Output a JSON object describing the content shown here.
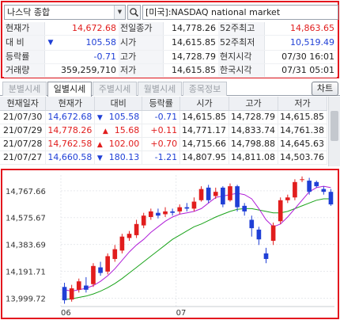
{
  "summary": {
    "stock_name": "나스닥 종합",
    "market_label": "[미국]:NASDAQ national market",
    "rows": [
      {
        "l1": "현재가",
        "v1": "14,672.68",
        "c1": "red",
        "l2": "전일종가",
        "v2": "14,778.26",
        "l3": "52주최고",
        "v3": "14,863.65",
        "c3": "red"
      },
      {
        "l1": "대 비",
        "v1": "105.58",
        "c1": "blue",
        "l2": "시가",
        "v2": "14,615.85",
        "l3": "52주최저",
        "v3": "10,519.49",
        "c3": "blue"
      },
      {
        "l1": "등락률",
        "v1": "-0.71",
        "c1": "blue",
        "l2": "고가",
        "v2": "14,728.79",
        "l3": "현지시각",
        "v3": "07/30 16:01",
        "c3": ""
      },
      {
        "l1": "거래량",
        "v1": "359,259,710",
        "c1": "",
        "l2": "저가",
        "v2": "14,615.85",
        "l3": "한국시각",
        "v3": "07/31 05:01",
        "c3": ""
      }
    ]
  },
  "tabs": [
    "분별시세",
    "일별시세",
    "주별시세",
    "월별시세",
    "종목정보"
  ],
  "active_tab": 1,
  "chart_button": "차트",
  "daily": {
    "headers": [
      "현재일자",
      "현재가",
      "대비",
      "등락률",
      "시가",
      "고가",
      "저가"
    ],
    "rows": [
      {
        "date": "21/07/30",
        "price": "14,672.68",
        "dir": "down",
        "chg": "105.58",
        "rate": "-0.71",
        "open": "14,615.85",
        "high": "14,728.79",
        "low": "14,615.85"
      },
      {
        "date": "21/07/29",
        "price": "14,778.26",
        "dir": "up",
        "chg": "15.68",
        "rate": "+0.11",
        "open": "14,771.17",
        "high": "14,833.74",
        "low": "14,761.38"
      },
      {
        "date": "21/07/28",
        "price": "14,762.58",
        "dir": "up",
        "chg": "102.00",
        "rate": "+0.70",
        "open": "14,715.66",
        "high": "14,798.88",
        "low": "14,645.63"
      },
      {
        "date": "21/07/27",
        "price": "14,660.58",
        "dir": "down",
        "chg": "180.13",
        "rate": "-1.21",
        "open": "14,807.95",
        "high": "14,811.08",
        "low": "14,503.76"
      }
    ]
  },
  "colors": {
    "up": "#e11d1d",
    "down": "#1f3fd6",
    "ma_short": "#b01fd8",
    "ma_long": "#1aa31a",
    "border": "#e3171e"
  },
  "chart_data": {
    "type": "candlestick",
    "y_ticks": [
      "14,767.66",
      "14,575.67",
      "14,383.69",
      "14,191.71",
      "13,999.72"
    ],
    "x_ticks": [
      "06",
      "07"
    ],
    "ylim": [
      13940,
      14880
    ],
    "candles": [
      {
        "o": 14080,
        "c": 13985,
        "h": 14110,
        "l": 13960
      },
      {
        "o": 13990,
        "c": 14070,
        "h": 14095,
        "l": 13975
      },
      {
        "o": 14060,
        "c": 14120,
        "h": 14140,
        "l": 14040
      },
      {
        "o": 14090,
        "c": 14060,
        "h": 14150,
        "l": 14040
      },
      {
        "o": 14100,
        "c": 14230,
        "h": 14250,
        "l": 14080
      },
      {
        "o": 14220,
        "c": 14180,
        "h": 14260,
        "l": 14160
      },
      {
        "o": 14190,
        "c": 14300,
        "h": 14320,
        "l": 14170
      },
      {
        "o": 14280,
        "c": 14350,
        "h": 14380,
        "l": 14260
      },
      {
        "o": 14340,
        "c": 14440,
        "h": 14460,
        "l": 14320
      },
      {
        "o": 14430,
        "c": 14460,
        "h": 14480,
        "l": 14410
      },
      {
        "o": 14450,
        "c": 14530,
        "h": 14560,
        "l": 14430
      },
      {
        "o": 14520,
        "c": 14590,
        "h": 14610,
        "l": 14500
      },
      {
        "o": 14580,
        "c": 14620,
        "h": 14640,
        "l": 14560
      },
      {
        "o": 14610,
        "c": 14590,
        "h": 14640,
        "l": 14570
      },
      {
        "o": 14600,
        "c": 14620,
        "h": 14650,
        "l": 14580
      },
      {
        "o": 14620,
        "c": 14610,
        "h": 14640,
        "l": 14590
      },
      {
        "o": 14620,
        "c": 14650,
        "h": 14670,
        "l": 14600
      },
      {
        "o": 14650,
        "c": 14640,
        "h": 14680,
        "l": 14620
      },
      {
        "o": 14640,
        "c": 14690,
        "h": 14720,
        "l": 14620
      },
      {
        "o": 14700,
        "c": 14780,
        "h": 14800,
        "l": 14690
      },
      {
        "o": 14790,
        "c": 14700,
        "h": 14810,
        "l": 14680
      },
      {
        "o": 14730,
        "c": 14760,
        "h": 14790,
        "l": 14710
      },
      {
        "o": 14790,
        "c": 14670,
        "h": 14800,
        "l": 14650
      },
      {
        "o": 14700,
        "c": 14800,
        "h": 14820,
        "l": 14690
      },
      {
        "o": 14800,
        "c": 14650,
        "h": 14810,
        "l": 14620
      },
      {
        "o": 14660,
        "c": 14620,
        "h": 14680,
        "l": 14590
      },
      {
        "o": 14560,
        "c": 14500,
        "h": 14590,
        "l": 14440
      },
      {
        "o": 14490,
        "c": 14420,
        "h": 14510,
        "l": 14380
      },
      {
        "o": 14320,
        "c": 14280,
        "h": 14360,
        "l": 14250
      },
      {
        "o": 14410,
        "c": 14520,
        "h": 14540,
        "l": 14380
      },
      {
        "o": 14550,
        "c": 14700,
        "h": 14720,
        "l": 14530
      },
      {
        "o": 14700,
        "c": 14720,
        "h": 14740,
        "l": 14680
      },
      {
        "o": 14720,
        "c": 14830,
        "h": 14850,
        "l": 14700
      },
      {
        "o": 14850,
        "c": 14850,
        "h": 14870,
        "l": 14830
      },
      {
        "o": 14840,
        "c": 14760,
        "h": 14860,
        "l": 14740
      },
      {
        "o": 14830,
        "c": 14800,
        "h": 14840,
        "l": 14790
      },
      {
        "o": 14780,
        "c": 14760,
        "h": 14800,
        "l": 14740
      },
      {
        "o": 14760,
        "c": 14670,
        "h": 14780,
        "l": 14660
      }
    ],
    "ma_short": [
      14060,
      14050,
      14060,
      14070,
      14090,
      14120,
      14160,
      14210,
      14270,
      14330,
      14380,
      14420,
      14470,
      14510,
      14550,
      14580,
      14600,
      14610,
      14620,
      14640,
      14680,
      14720,
      14730,
      14740,
      14750,
      14740,
      14710,
      14640,
      14560,
      14510,
      14530,
      14580,
      14640,
      14700,
      14760,
      14790,
      14800,
      14790
    ],
    "ma_long": [
      13990,
      13995,
      14005,
      14015,
      14030,
      14050,
      14075,
      14105,
      14140,
      14180,
      14220,
      14260,
      14300,
      14340,
      14380,
      14420,
      14450,
      14480,
      14510,
      14530,
      14555,
      14580,
      14600,
      14620,
      14635,
      14640,
      14640,
      14630,
      14620,
      14610,
      14610,
      14620,
      14640,
      14660,
      14680,
      14700,
      14710,
      14710
    ],
    "x_tick_index": [
      0,
      16
    ]
  }
}
